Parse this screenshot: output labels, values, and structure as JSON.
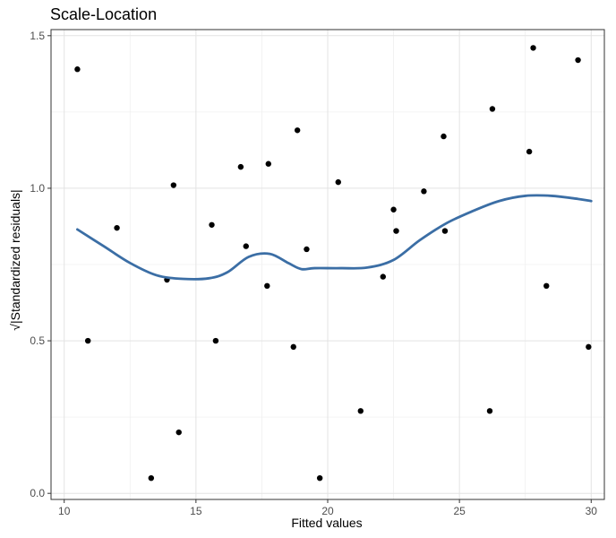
{
  "chart_data": {
    "type": "scatter",
    "title": "Scale-Location",
    "xlabel": "Fitted values",
    "ylabel": "√|Standardized residuals|",
    "xlim": [
      9.5,
      30.5
    ],
    "ylim": [
      -0.02,
      1.52
    ],
    "x_ticks": [
      10,
      15,
      20,
      25,
      30
    ],
    "y_ticks": [
      0.0,
      0.5,
      1.0,
      1.5
    ],
    "x_tick_labels": [
      "10",
      "15",
      "20",
      "25",
      "30"
    ],
    "y_tick_labels": [
      "0.0",
      "0.5",
      "1.0",
      "1.5"
    ],
    "grid": true,
    "point_color": "#000000",
    "line_color": "#3b6ea5",
    "points": [
      {
        "x": 10.5,
        "y": 1.39
      },
      {
        "x": 10.9,
        "y": 0.5
      },
      {
        "x": 12.0,
        "y": 0.87
      },
      {
        "x": 13.3,
        "y": 0.05
      },
      {
        "x": 13.9,
        "y": 0.7
      },
      {
        "x": 14.15,
        "y": 1.01
      },
      {
        "x": 14.35,
        "y": 0.2
      },
      {
        "x": 15.6,
        "y": 0.88
      },
      {
        "x": 15.75,
        "y": 0.5
      },
      {
        "x": 16.7,
        "y": 1.07
      },
      {
        "x": 16.9,
        "y": 0.81
      },
      {
        "x": 17.7,
        "y": 0.68
      },
      {
        "x": 17.75,
        "y": 1.08
      },
      {
        "x": 18.7,
        "y": 0.48
      },
      {
        "x": 18.85,
        "y": 1.19
      },
      {
        "x": 19.2,
        "y": 0.8
      },
      {
        "x": 19.7,
        "y": 0.05
      },
      {
        "x": 20.4,
        "y": 1.02
      },
      {
        "x": 21.25,
        "y": 0.27
      },
      {
        "x": 22.1,
        "y": 0.71
      },
      {
        "x": 22.5,
        "y": 0.93
      },
      {
        "x": 22.6,
        "y": 0.86
      },
      {
        "x": 23.65,
        "y": 0.99
      },
      {
        "x": 24.4,
        "y": 1.17
      },
      {
        "x": 24.45,
        "y": 0.86
      },
      {
        "x": 26.15,
        "y": 0.27
      },
      {
        "x": 26.25,
        "y": 1.26
      },
      {
        "x": 27.65,
        "y": 1.12
      },
      {
        "x": 27.8,
        "y": 1.46
      },
      {
        "x": 28.3,
        "y": 0.68
      },
      {
        "x": 29.5,
        "y": 1.42
      },
      {
        "x": 29.9,
        "y": 0.48
      }
    ],
    "smooth": {
      "x": [
        10.5,
        11.5,
        12.5,
        13.5,
        14.5,
        15.5,
        16.2,
        17.0,
        17.8,
        18.5,
        19.0,
        19.5,
        20.5,
        21.5,
        22.5,
        23.5,
        24.5,
        25.5,
        26.5,
        27.5,
        28.5,
        29.5,
        30.0
      ],
      "y": [
        0.865,
        0.81,
        0.755,
        0.715,
        0.703,
        0.705,
        0.725,
        0.775,
        0.785,
        0.755,
        0.735,
        0.738,
        0.738,
        0.74,
        0.765,
        0.83,
        0.885,
        0.925,
        0.958,
        0.975,
        0.975,
        0.965,
        0.958
      ]
    }
  }
}
